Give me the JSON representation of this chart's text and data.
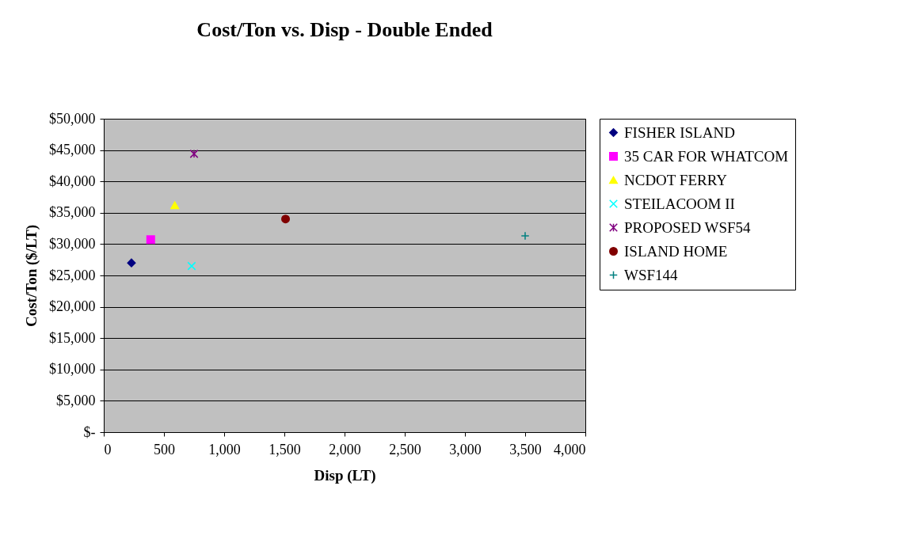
{
  "chart_data": {
    "type": "scatter",
    "title": "Cost/Ton vs. Disp - Double Ended",
    "xlabel": "Disp (LT)",
    "ylabel": "Cost/Ton ($/LT)",
    "xlim": [
      0,
      4000
    ],
    "xticks": [
      0,
      {
        "value": 500,
        "label": "500"
      },
      {
        "value": 1000,
        "label": "1,000"
      },
      {
        "value": 1500,
        "label": "1,500"
      },
      {
        "value": 2000,
        "label": "2,000"
      },
      {
        "value": 2500,
        "label": "2,500"
      },
      {
        "value": 3000,
        "label": "3,000"
      },
      {
        "value": 3500,
        "label": "3,500"
      },
      {
        "value": 4000,
        "label": "4,000"
      }
    ],
    "ylim": [
      0,
      50000
    ],
    "yticks": [
      {
        "value": 0,
        "label": "$-"
      },
      {
        "value": 5000,
        "label": "$5,000"
      },
      {
        "value": 10000,
        "label": "$10,000"
      },
      {
        "value": 15000,
        "label": "$15,000"
      },
      {
        "value": 20000,
        "label": "$20,000"
      },
      {
        "value": 25000,
        "label": "$25,000"
      },
      {
        "value": 30000,
        "label": "$30,000"
      },
      {
        "value": 35000,
        "label": "$35,000"
      },
      {
        "value": 40000,
        "label": "$40,000"
      },
      {
        "value": 45000,
        "label": "$45,000"
      },
      {
        "value": 50000,
        "label": "$50,000"
      }
    ],
    "grid": "y",
    "legend": "right",
    "series": [
      {
        "name": "FISHER ISLAND",
        "color": "#000080",
        "marker": "diamond",
        "x": [
          230
        ],
        "values": [
          27000
        ]
      },
      {
        "name": "35 CAR FOR WHATCOM",
        "color": "#ff00ff",
        "marker": "square",
        "x": [
          390
        ],
        "values": [
          30700
        ]
      },
      {
        "name": "NCDOT FERRY",
        "color": "#ffff00",
        "marker": "triangle",
        "x": [
          590
        ],
        "values": [
          36200
        ]
      },
      {
        "name": "STEILACOOM II",
        "color": "#00ffff",
        "marker": "x",
        "x": [
          730
        ],
        "values": [
          26500
        ]
      },
      {
        "name": "PROPOSED WSF54",
        "color": "#800080",
        "marker": "cross",
        "x": [
          750
        ],
        "values": [
          44400
        ]
      },
      {
        "name": "ISLAND HOME",
        "color": "#800000",
        "marker": "circle",
        "x": [
          1510
        ],
        "values": [
          34000
        ]
      },
      {
        "name": "WSF144",
        "color": "#008080",
        "marker": "plus",
        "x": [
          3500
        ],
        "values": [
          31300
        ]
      }
    ]
  }
}
